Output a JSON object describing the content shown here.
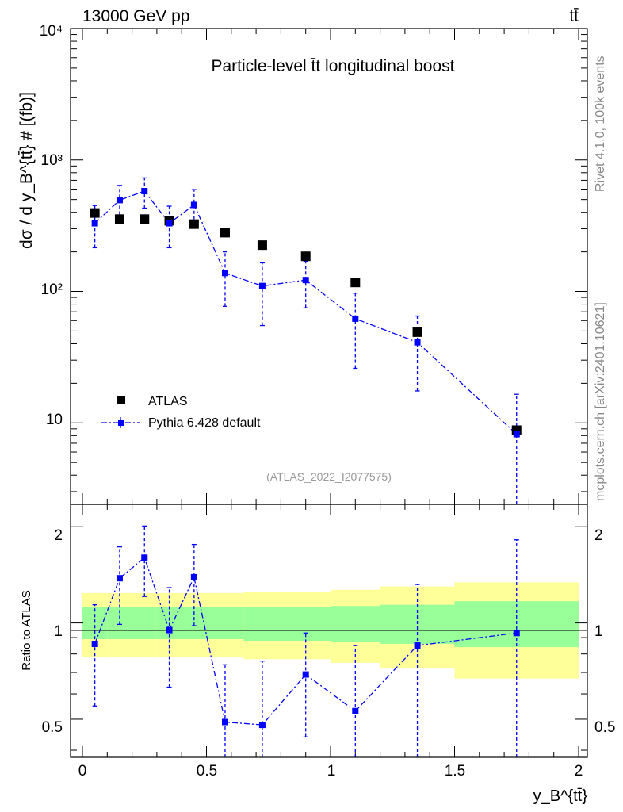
{
  "header": {
    "energy_label": "13000 GeV pp",
    "process_label": "tt̄"
  },
  "side_labels": {
    "rivet": "Rivet 4.1.0,  100k events",
    "mcplots": "mcplots.cern.ch [arXiv:2401.10621]"
  },
  "colors": {
    "data": "#000000",
    "mc": "#0000ff",
    "band_inner": "#99ff99",
    "band_outer": "#ffff99",
    "watermark": "#999999",
    "side_text": "#888888"
  },
  "chart_data": {
    "type": "scatter",
    "title": "Particle-level t̄t longitudinal boost",
    "analysis_tag": "(ATLAS_2022_I2077575)",
    "ylabel": "dσ / d y_B^{tt̄} # [(fb)]",
    "ratio_ylabel": "Ratio to ATLAS",
    "xlabel": "y_B^{tt̄}",
    "x_ticks": [
      "0",
      "0.5",
      "1",
      "1.5",
      "2"
    ],
    "y_ticks": [
      "10",
      "10²",
      "10³",
      "10⁴"
    ],
    "ratio_ticks": [
      "0.5",
      "1",
      "2"
    ],
    "xlim": [
      -0.07,
      2.07
    ],
    "ylim": [
      2.4,
      10000
    ],
    "ratio_ylim": [
      0.38,
      2.35
    ],
    "legend": {
      "position": "bottom-left",
      "data_label": "ATLAS",
      "mc_label": "Pythia 6.428 default"
    },
    "bin_edges": [
      0,
      0.1,
      0.2,
      0.3,
      0.4,
      0.5,
      0.65,
      0.8,
      1.0,
      1.2,
      1.5,
      2.0
    ],
    "atlas": {
      "name": "ATLAS",
      "x": [
        0.05,
        0.15,
        0.25,
        0.35,
        0.45,
        0.575,
        0.725,
        0.9,
        1.1,
        1.35,
        1.75
      ],
      "values": [
        395,
        355,
        355,
        345,
        325,
        280,
        225,
        185,
        117,
        49,
        8.8
      ],
      "band_inner_lo": [
        0.89,
        0.89,
        0.89,
        0.89,
        0.89,
        0.89,
        0.88,
        0.88,
        0.87,
        0.86,
        0.84
      ],
      "band_inner_hi": [
        1.12,
        1.12,
        1.12,
        1.12,
        1.12,
        1.12,
        1.12,
        1.12,
        1.13,
        1.14,
        1.17
      ],
      "band_outer_lo": [
        0.78,
        0.78,
        0.78,
        0.78,
        0.78,
        0.78,
        0.77,
        0.77,
        0.75,
        0.72,
        0.67
      ],
      "band_outer_hi": [
        1.24,
        1.24,
        1.24,
        1.24,
        1.24,
        1.24,
        1.25,
        1.25,
        1.27,
        1.3,
        1.34
      ]
    },
    "pythia": {
      "name": "Pythia 6.428 default",
      "x": [
        0.05,
        0.15,
        0.25,
        0.35,
        0.45,
        0.575,
        0.725,
        0.9,
        1.1,
        1.35,
        1.75
      ],
      "values": [
        330,
        495,
        580,
        330,
        455,
        138,
        110,
        122,
        62,
        41,
        8.2
      ],
      "err_lo": [
        215,
        350,
        430,
        215,
        320,
        77,
        55,
        75,
        26,
        17.5,
        0.5
      ],
      "err_hi": [
        450,
        640,
        730,
        445,
        595,
        200,
        165,
        170,
        97,
        65,
        16.5
      ]
    },
    "ratio": {
      "x": [
        0.05,
        0.15,
        0.25,
        0.35,
        0.45,
        0.575,
        0.725,
        0.9,
        1.1,
        1.35,
        1.75
      ],
      "values": [
        0.86,
        1.38,
        1.6,
        0.95,
        1.39,
        0.49,
        0.48,
        0.69,
        0.53,
        0.85,
        0.93
      ],
      "err_lo": [
        0.55,
        0.99,
        1.21,
        0.63,
        0.98,
        0.34,
        0.33,
        0.44,
        0.33,
        0.35,
        0.35
      ],
      "err_hi": [
        1.14,
        1.73,
        2.01,
        1.29,
        1.76,
        0.74,
        0.76,
        0.93,
        0.85,
        1.32,
        1.82
      ]
    }
  }
}
